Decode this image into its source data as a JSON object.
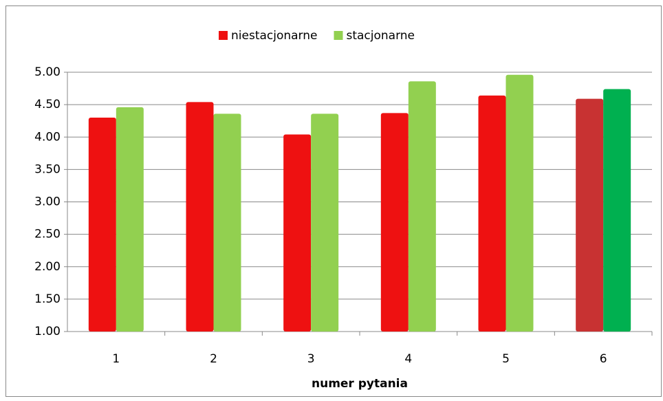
{
  "chart_data": {
    "type": "bar",
    "x_label": "numer pytania",
    "categories": [
      "1",
      "2",
      "3",
      "4",
      "5",
      "6"
    ],
    "series": [
      {
        "name": "niestacjonarne",
        "color": "#ee1111",
        "colors": [
          "#ee1111",
          "#ee1111",
          "#ee1111",
          "#ee1111",
          "#ee1111",
          "#c83232"
        ],
        "values": [
          4.3,
          4.54,
          4.04,
          4.37,
          4.64,
          4.59
        ]
      },
      {
        "name": "stacjonarne",
        "color": "#92d050",
        "colors": [
          "#92d050",
          "#92d050",
          "#92d050",
          "#92d050",
          "#92d050",
          "#00b050"
        ],
        "values": [
          4.46,
          4.36,
          4.36,
          4.86,
          4.96,
          4.74
        ]
      }
    ],
    "ylim": [
      1,
      5
    ],
    "yticks": [
      {
        "value": 1,
        "label": "1.00"
      },
      {
        "value": 1.5,
        "label": "1.50"
      },
      {
        "value": 2,
        "label": "2.00"
      },
      {
        "value": 2.5,
        "label": "2.50"
      },
      {
        "value": 3,
        "label": "3.00"
      },
      {
        "value": 3.5,
        "label": "3.50"
      },
      {
        "value": 4,
        "label": "4.00"
      },
      {
        "value": 4.5,
        "label": "4.50"
      },
      {
        "value": 5,
        "label": "5.00"
      }
    ],
    "grid": true,
    "legend": "top"
  }
}
